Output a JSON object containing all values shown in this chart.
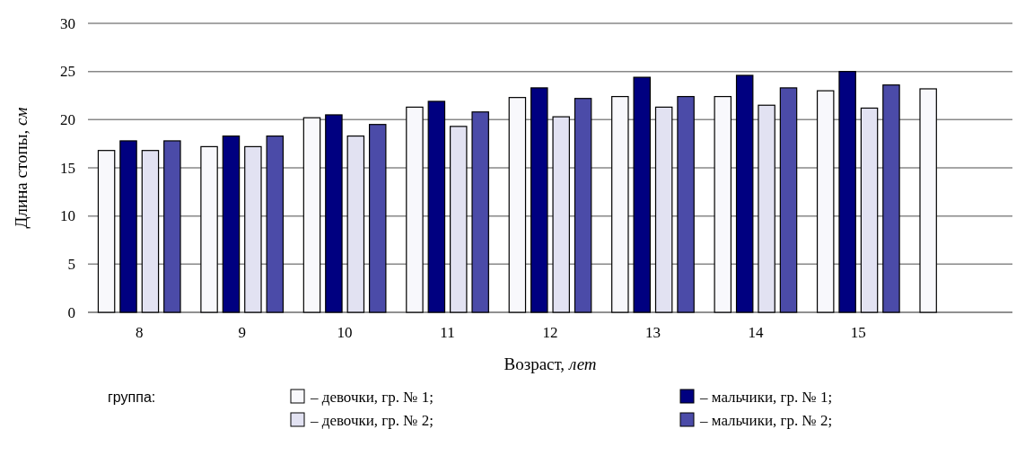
{
  "chart_data": {
    "type": "bar",
    "xlabel": "Возраст, лет",
    "ylabel": "Длина стопы, см",
    "legend_title": "группа:",
    "categories": [
      "8",
      "9",
      "10",
      "11",
      "12",
      "13",
      "14",
      "15",
      null
    ],
    "ylim": [
      0,
      30
    ],
    "yticks": [
      0,
      5,
      10,
      15,
      20,
      25,
      30
    ],
    "grid": "y",
    "legend": "bottom",
    "series": [
      {
        "name": "– девочки, гр. № 1;",
        "color": "#f8f8fc",
        "values": [
          16.8,
          17.2,
          20.2,
          21.3,
          22.3,
          22.4,
          22.4,
          23.0,
          23.2
        ]
      },
      {
        "name": "– мальчики, гр. № 1;",
        "color": "#000080",
        "values": [
          17.8,
          18.3,
          20.5,
          21.9,
          23.3,
          24.4,
          24.6,
          25.0,
          null
        ]
      },
      {
        "name": "– девочки, гр. № 2;",
        "color": "#e2e2f2",
        "values": [
          16.8,
          17.2,
          18.3,
          19.3,
          20.3,
          21.3,
          21.5,
          21.2,
          null
        ]
      },
      {
        "name": "– мальчики, гр. № 2;",
        "color": "#4b4ba8",
        "values": [
          17.8,
          18.3,
          19.5,
          20.8,
          22.2,
          22.4,
          23.3,
          23.6,
          null
        ]
      }
    ]
  }
}
